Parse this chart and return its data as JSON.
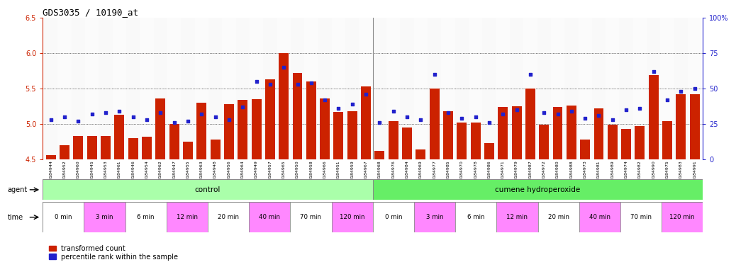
{
  "title": "GDS3035 / 10190_at",
  "samples": [
    "GSM184944",
    "GSM184952",
    "GSM184960",
    "GSM184945",
    "GSM184953",
    "GSM184961",
    "GSM184946",
    "GSM184954",
    "GSM184962",
    "GSM184947",
    "GSM184955",
    "GSM184963",
    "GSM184948",
    "GSM184956",
    "GSM184964",
    "GSM184949",
    "GSM184957",
    "GSM184965",
    "GSM184950",
    "GSM184958",
    "GSM184966",
    "GSM184951",
    "GSM184959",
    "GSM184967",
    "GSM184968",
    "GSM184976",
    "GSM184984",
    "GSM184969",
    "GSM184977",
    "GSM184985",
    "GSM184970",
    "GSM184978",
    "GSM184986",
    "GSM184971",
    "GSM184979",
    "GSM184987",
    "GSM184972",
    "GSM184980",
    "GSM184988",
    "GSM184973",
    "GSM184981",
    "GSM184989",
    "GSM184974",
    "GSM184982",
    "GSM184990",
    "GSM184975",
    "GSM184983",
    "GSM184991"
  ],
  "red_values": [
    4.56,
    4.7,
    4.83,
    4.83,
    4.83,
    5.13,
    4.8,
    4.82,
    5.36,
    5.0,
    4.75,
    5.3,
    4.78,
    5.28,
    5.34,
    5.35,
    5.63,
    6.0,
    5.72,
    5.6,
    5.36,
    5.17,
    5.18,
    5.53,
    4.62,
    5.04,
    4.95,
    4.64,
    5.5,
    5.18,
    5.02,
    5.02,
    4.73,
    5.24,
    5.25,
    5.5,
    4.99,
    5.24,
    5.26,
    4.78,
    5.22,
    4.99,
    4.93,
    4.97,
    5.69,
    5.04,
    5.42,
    5.42
  ],
  "blue_percentile": [
    28,
    30,
    27,
    32,
    33,
    34,
    30,
    28,
    33,
    26,
    27,
    32,
    30,
    28,
    37,
    55,
    53,
    65,
    53,
    54,
    42,
    36,
    39,
    46,
    26,
    34,
    30,
    28,
    60,
    33,
    29,
    30,
    26,
    32,
    35,
    60,
    33,
    32,
    34,
    29,
    31,
    28,
    35,
    36,
    62,
    42,
    48,
    50
  ],
  "ylim_left": [
    4.5,
    6.5
  ],
  "ylim_right": [
    0,
    100
  ],
  "yticks_left": [
    4.5,
    5.0,
    5.5,
    6.0,
    6.5
  ],
  "yticks_right": [
    0,
    25,
    50,
    75,
    100
  ],
  "bar_color": "#cc2200",
  "dot_color": "#2222cc",
  "grid_lines": [
    5.0,
    5.5,
    6.0
  ],
  "control_color": "#aaffaa",
  "treatment_color": "#66ee66",
  "time_colors": [
    "#ffffff",
    "#ff88ff",
    "#ffffff",
    "#ff88ff",
    "#ffffff",
    "#ff88ff",
    "#ffffff",
    "#ff88ff"
  ],
  "time_labels": [
    "0 min",
    "3 min",
    "6 min",
    "12 min",
    "20 min",
    "40 min",
    "70 min",
    "120 min"
  ],
  "agent_labels": [
    "control",
    "cumene hydroperoxide"
  ]
}
